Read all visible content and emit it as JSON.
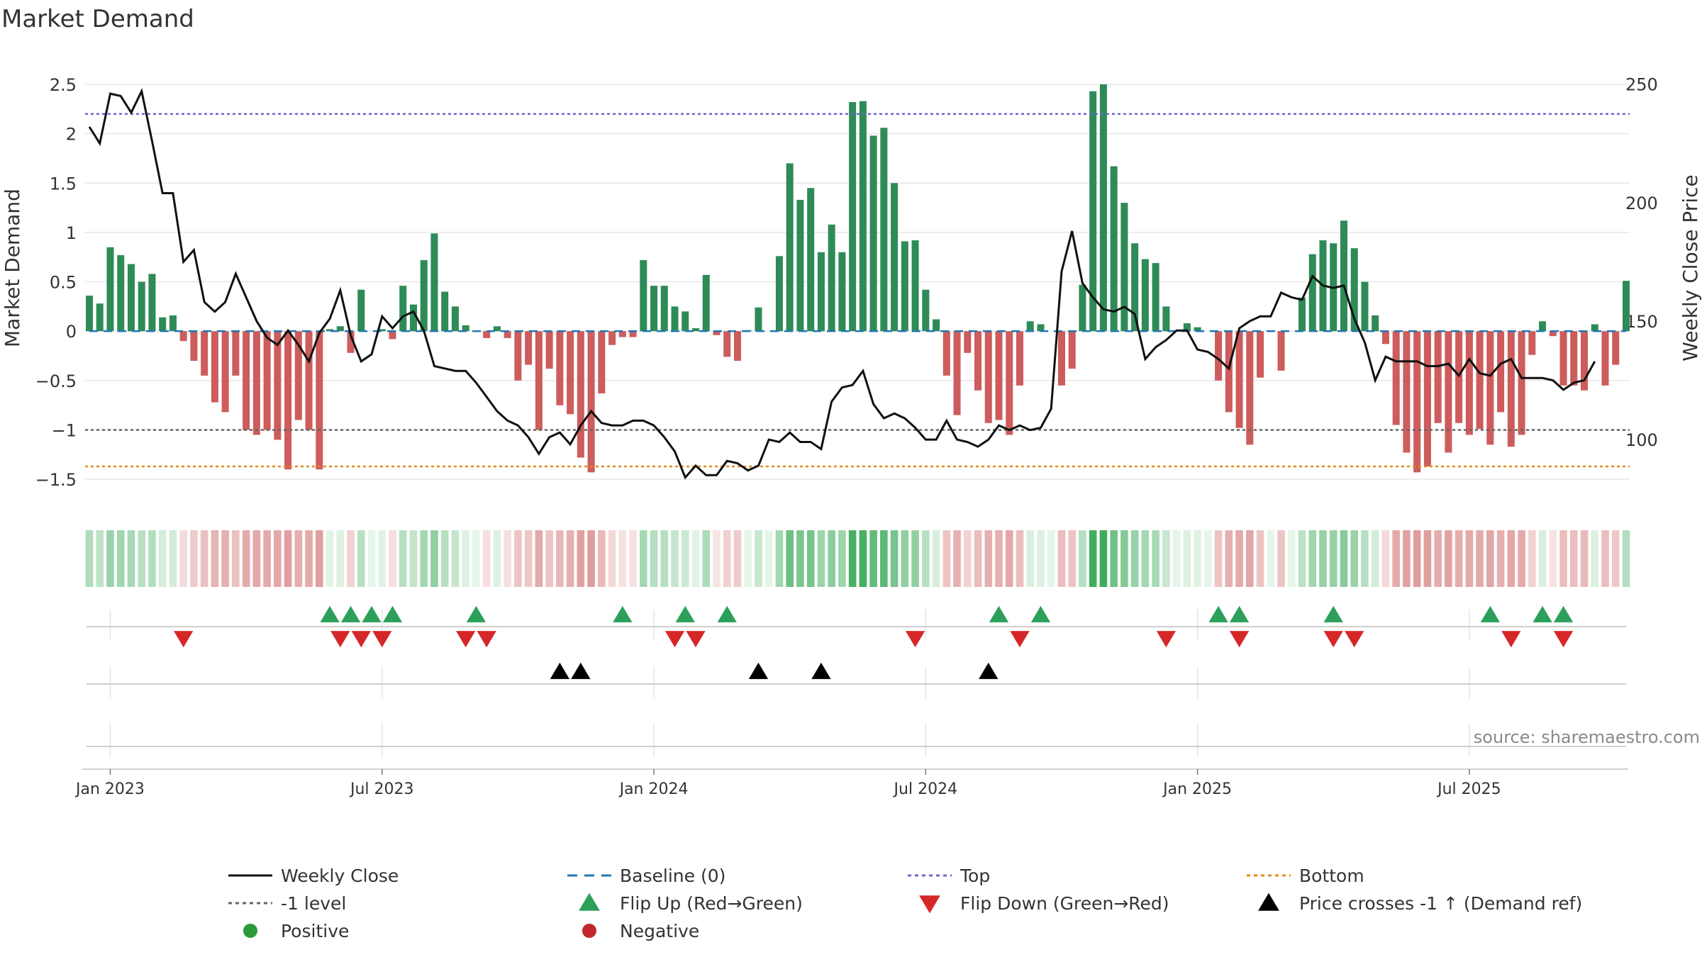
{
  "title": "Market Demand",
  "source": "source: sharemaestro.com",
  "colors": {
    "pos_bar": "#2e8b57",
    "neg_bar": "#cd5c5c",
    "close_line": "#111111",
    "baseline": "#1f77b4",
    "top_line": "#6a6acd",
    "minus1_line": "#666666",
    "bottom_line": "#e08c1a",
    "flip_up": "#2ca05a",
    "flip_down": "#d62728",
    "price_cross": "#000000",
    "positive": "#2a9a3a",
    "negative": "#c0282d",
    "grid": "#e6e6e6"
  },
  "chart_data": {
    "type": "bar",
    "title": "Market Demand",
    "ylabel": "Market Demand",
    "y2label": "Weekly Close Price",
    "ylim": [
      -1.65,
      2.55
    ],
    "y2lim": [
      77,
      252
    ],
    "yticks": [
      2.5,
      2,
      1.5,
      1,
      0.5,
      0,
      -0.5,
      -1,
      -1.5
    ],
    "ytick_labels": [
      "2.5",
      "2",
      "1.5",
      "1",
      "0.5",
      "0",
      "−0.5",
      "−1",
      "−1.5"
    ],
    "y2ticks": [
      250,
      200,
      150,
      100
    ],
    "y2tick_labels": [
      "250",
      "200",
      "150",
      "100"
    ],
    "levels": {
      "top": 2.2,
      "minus1": -1.0,
      "bottom": -1.37,
      "baseline": 0
    },
    "x_ticks": [
      {
        "week": 2,
        "label": "Jan 2023"
      },
      {
        "week": 28,
        "label": "Jul 2023"
      },
      {
        "week": 54,
        "label": "Jan 2024"
      },
      {
        "week": 80,
        "label": "Jul 2024"
      },
      {
        "week": 106,
        "label": "Jan 2025"
      },
      {
        "week": 132,
        "label": "Jul 2025"
      }
    ],
    "demand": [
      0.36,
      0.28,
      0.85,
      0.77,
      0.68,
      0.5,
      0.58,
      0.14,
      0.16,
      -0.1,
      -0.3,
      -0.45,
      -0.72,
      -0.82,
      -0.45,
      -1.0,
      -1.05,
      -1.0,
      -1.1,
      -1.4,
      -0.9,
      -1.0,
      -1.4,
      0.02,
      0.05,
      -0.22,
      0.42,
      0.0,
      0.02,
      -0.08,
      0.46,
      0.27,
      0.72,
      0.99,
      0.4,
      0.25,
      0.06,
      0.0,
      -0.07,
      0.05,
      -0.07,
      -0.5,
      -0.34,
      -1.0,
      -0.38,
      -0.75,
      -0.84,
      -1.28,
      -1.43,
      -0.63,
      -0.14,
      -0.06,
      -0.06,
      0.72,
      0.46,
      0.46,
      0.25,
      0.2,
      0.03,
      0.57,
      -0.04,
      -0.26,
      -0.3,
      0.01,
      0.24,
      0.0,
      0.76,
      1.7,
      1.33,
      1.45,
      0.8,
      1.08,
      0.8,
      2.32,
      2.33,
      1.98,
      2.06,
      1.5,
      0.91,
      0.92,
      0.42,
      0.12,
      -0.45,
      -0.85,
      -0.22,
      -0.6,
      -0.93,
      -0.9,
      -1.05,
      -0.55,
      0.1,
      0.07,
      0.0,
      -0.55,
      -0.38,
      0.47,
      2.43,
      2.5,
      1.67,
      1.3,
      0.89,
      0.73,
      0.69,
      0.25,
      0.01,
      0.08,
      0.04,
      0.0,
      -0.5,
      -0.82,
      -0.98,
      -1.15,
      -0.47,
      0.0,
      -0.4,
      0.0,
      0.34,
      0.78,
      0.92,
      0.89,
      1.12,
      0.84,
      0.5,
      0.16,
      -0.13,
      -0.95,
      -1.23,
      -1.43,
      -1.37,
      -0.93,
      -1.23,
      -0.93,
      -1.05,
      -0.99,
      -1.15,
      -0.82,
      -1.17,
      -1.05,
      -0.24,
      0.1,
      -0.05,
      -0.55,
      -0.55,
      -0.6,
      0.07,
      -0.55,
      -0.34,
      0.51
    ],
    "weekly_close": [
      232,
      225,
      246,
      245,
      238,
      247,
      226,
      204,
      204,
      175,
      180,
      158,
      154,
      158,
      170,
      160,
      150,
      143,
      140,
      146,
      140,
      133,
      145,
      151,
      163,
      144,
      133,
      136,
      152,
      147,
      152,
      154,
      146,
      131,
      130,
      129,
      129,
      124,
      118,
      112,
      108,
      106,
      101,
      94,
      101,
      103,
      98,
      106,
      112,
      107,
      106,
      106,
      108,
      108,
      106,
      101,
      95,
      84,
      89,
      85,
      85,
      91,
      90,
      87,
      89,
      100,
      99,
      103,
      99,
      99,
      96,
      116,
      122,
      123,
      129,
      115,
      109,
      111,
      109,
      105,
      100,
      100,
      108,
      100,
      99,
      97,
      100,
      106,
      104,
      106,
      104,
      105,
      113,
      171,
      188,
      166,
      160,
      155,
      154,
      156,
      153,
      134,
      139,
      142,
      146,
      146,
      138,
      137,
      134,
      130,
      147,
      150,
      152,
      152,
      162,
      160,
      159,
      169,
      165,
      164,
      165,
      151,
      141,
      125,
      135,
      133,
      133,
      133,
      131,
      131,
      132,
      127,
      134,
      128,
      127,
      132,
      134,
      126,
      126,
      126,
      125,
      121,
      124,
      125,
      133
    ],
    "heat_intensity": [
      0.34,
      0.27,
      0.45,
      0.42,
      0.38,
      0.3,
      0.33,
      0.15,
      0.16,
      -0.14,
      -0.26,
      -0.33,
      -0.42,
      -0.45,
      -0.33,
      -0.48,
      -0.49,
      -0.48,
      -0.5,
      -0.56,
      -0.45,
      -0.48,
      -0.56,
      0.08,
      0.1,
      -0.2,
      0.3,
      0.06,
      0.08,
      -0.12,
      0.31,
      0.24,
      0.4,
      0.5,
      0.3,
      0.23,
      0.1,
      0.06,
      -0.11,
      0.1,
      -0.11,
      -0.3,
      -0.28,
      -0.48,
      -0.3,
      -0.4,
      -0.44,
      -0.55,
      -0.57,
      -0.37,
      -0.16,
      -0.1,
      -0.1,
      0.4,
      0.31,
      0.31,
      0.23,
      0.2,
      0.08,
      0.35,
      -0.08,
      -0.22,
      -0.25,
      0.06,
      0.22,
      0.06,
      0.41,
      0.68,
      0.6,
      0.63,
      0.44,
      0.52,
      0.44,
      0.86,
      0.87,
      0.73,
      0.76,
      0.62,
      0.49,
      0.49,
      0.3,
      0.14,
      -0.3,
      -0.44,
      -0.2,
      -0.36,
      -0.45,
      -0.44,
      -0.5,
      -0.35,
      0.13,
      0.11,
      0.06,
      -0.35,
      -0.3,
      0.31,
      0.9,
      0.92,
      0.66,
      0.56,
      0.47,
      0.4,
      0.38,
      0.22,
      0.07,
      0.11,
      0.09,
      0.06,
      -0.3,
      -0.44,
      -0.48,
      -0.52,
      -0.3,
      0.06,
      -0.3,
      0.06,
      0.28,
      0.42,
      0.47,
      0.46,
      0.55,
      0.45,
      0.3,
      0.16,
      -0.15,
      -0.48,
      -0.54,
      -0.57,
      -0.56,
      -0.46,
      -0.54,
      -0.46,
      -0.49,
      -0.48,
      -0.52,
      -0.44,
      -0.52,
      -0.49,
      -0.21,
      0.13,
      -0.09,
      -0.35,
      -0.35,
      -0.37,
      0.11,
      -0.35,
      -0.28,
      0.32
    ],
    "flip_up_weeks": [
      23,
      25,
      27,
      29,
      37,
      51,
      57,
      61,
      87,
      91,
      108,
      110,
      119,
      134,
      139,
      141
    ],
    "flip_down_weeks": [
      9,
      24,
      26,
      28,
      36,
      38,
      56,
      58,
      79,
      89,
      103,
      110,
      119,
      121,
      136,
      141
    ],
    "price_cross_weeks": [
      45,
      47,
      64,
      70,
      86
    ],
    "legend": [
      {
        "key": "weekly-close",
        "label": "Weekly Close",
        "marker": "solid-line",
        "color": "#111111"
      },
      {
        "key": "baseline",
        "label": "Baseline (0)",
        "marker": "dash-line",
        "color": "#1f77b4"
      },
      {
        "key": "top",
        "label": "Top",
        "marker": "dot-line",
        "color": "#6a6acd"
      },
      {
        "key": "bottom",
        "label": "Bottom",
        "marker": "dot-line",
        "color": "#e08c1a"
      },
      {
        "key": "minus1-level",
        "label": "-1 level",
        "marker": "dot-line",
        "color": "#666666"
      },
      {
        "key": "flip-up",
        "label": "Flip Up (Red→Green)",
        "marker": "tri-up",
        "color": "#2ca05a"
      },
      {
        "key": "flip-down",
        "label": "Flip Down (Green→Red)",
        "marker": "tri-down",
        "color": "#d62728"
      },
      {
        "key": "price-crosses",
        "label": "Price crosses -1 ↑ (Demand ref)",
        "marker": "tri-up",
        "color": "#000000"
      },
      {
        "key": "positive",
        "label": "Positive",
        "marker": "circle",
        "color": "#2a9a3a"
      },
      {
        "key": "negative",
        "label": "Negative",
        "marker": "circle",
        "color": "#c0282d"
      }
    ]
  }
}
